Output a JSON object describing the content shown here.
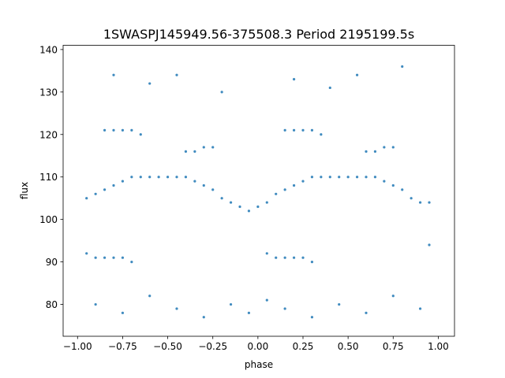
{
  "chart_data": {
    "type": "scatter",
    "title": "1SWASPJ145949.56-375508.3 Period 2195199.5s",
    "xlabel": "phase",
    "ylabel": "flux",
    "xlim": [
      -1.08,
      1.09
    ],
    "ylim": [
      72.5,
      141
    ],
    "xticks": [
      -1.0,
      -0.75,
      -0.5,
      -0.25,
      0.0,
      0.25,
      0.5,
      0.75,
      1.0
    ],
    "xtick_labels": [
      "−1.00",
      "−0.75",
      "−0.50",
      "−0.25",
      "0.00",
      "0.25",
      "0.50",
      "0.75",
      "1.00"
    ],
    "yticks": [
      80,
      90,
      100,
      110,
      120,
      130,
      140
    ],
    "ytick_labels": [
      "80",
      "90",
      "100",
      "110",
      "120",
      "130",
      "140"
    ],
    "grid": false,
    "legend": "none",
    "point_color": "#1f77b4",
    "series": [
      {
        "x": [
          -0.95,
          -0.9,
          -0.85,
          -0.8,
          -0.75,
          -0.7,
          -0.65,
          -0.6,
          -0.55,
          -0.5,
          -0.45,
          -0.4,
          -0.35,
          -0.3,
          -0.25,
          -0.2,
          -0.15,
          -0.1,
          -0.05,
          0.0,
          0.05,
          0.1,
          0.15,
          0.2,
          0.25,
          0.3,
          0.35,
          0.4,
          0.45,
          0.5,
          0.55,
          0.6,
          0.65,
          0.7,
          0.75,
          0.8,
          0.85,
          0.9,
          0.95
        ],
        "y": [
          105,
          106,
          107,
          108,
          109,
          110,
          110,
          110,
          110,
          110,
          110,
          110,
          109,
          108,
          107,
          105,
          104,
          103,
          102,
          103,
          104,
          106,
          107,
          108,
          109,
          110,
          110,
          110,
          110,
          110,
          110,
          110,
          110,
          109,
          108,
          107,
          105,
          104,
          104
        ]
      },
      {
        "x": [
          -0.85,
          -0.8,
          -0.75,
          -0.7,
          -0.65,
          0.15,
          0.2,
          0.25,
          0.3,
          0.35
        ],
        "y": [
          121,
          121,
          121,
          121,
          120,
          121,
          121,
          121,
          121,
          120
        ]
      },
      {
        "x": [
          -0.4,
          -0.35,
          -0.3,
          -0.25,
          0.6,
          0.65,
          0.7,
          0.75
        ],
        "y": [
          116,
          116,
          117,
          117,
          116,
          116,
          117,
          117
        ]
      },
      {
        "x": [
          -0.95,
          -0.9,
          -0.85,
          -0.8,
          -0.75,
          -0.7,
          0.05,
          0.1,
          0.15,
          0.2,
          0.25,
          0.3,
          0.95
        ],
        "y": [
          92,
          91,
          91,
          91,
          91,
          90,
          92,
          91,
          91,
          91,
          91,
          90,
          94
        ]
      },
      {
        "x": [
          -0.8,
          -0.6,
          -0.45,
          -0.2,
          0.2,
          0.4,
          0.55,
          0.8
        ],
        "y": [
          134,
          132,
          134,
          130,
          133,
          131,
          134,
          136
        ]
      },
      {
        "x": [
          -0.9,
          -0.75,
          -0.6,
          -0.45,
          -0.3,
          -0.15,
          -0.05,
          0.05,
          0.15,
          0.3,
          0.45,
          0.6,
          0.75,
          0.9
        ],
        "y": [
          80,
          78,
          82,
          79,
          77,
          80,
          78,
          81,
          79,
          77,
          80,
          78,
          82,
          79
        ]
      }
    ]
  }
}
